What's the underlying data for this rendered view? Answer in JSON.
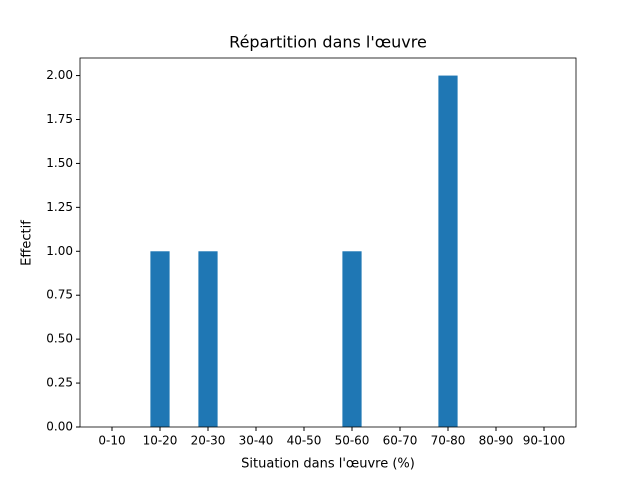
{
  "chart_data": {
    "type": "bar",
    "title": "Répartition dans l'œuvre",
    "x_label": "Situation dans l'œuvre (%)",
    "y_label": "Effectif",
    "categories": [
      "0-10",
      "10-20",
      "20-30",
      "30-40",
      "40-50",
      "50-60",
      "60-70",
      "70-80",
      "80-90",
      "90-100"
    ],
    "values": [
      0,
      1,
      1,
      0,
      0,
      1,
      0,
      2,
      0,
      0
    ],
    "color": "#1f77b4",
    "ylim": [
      0,
      2.1
    ],
    "yticks": [
      {
        "value": 0,
        "label": "0.00"
      },
      {
        "value": 0.25,
        "label": "0.25"
      },
      {
        "value": 0.5,
        "label": "0.50"
      },
      {
        "value": 0.75,
        "label": "0.75"
      },
      {
        "value": 1,
        "label": "1.00"
      },
      {
        "value": 1.25,
        "label": "1.25"
      },
      {
        "value": 1.5,
        "label": "1.50"
      },
      {
        "value": 1.75,
        "label": "1.75"
      },
      {
        "value": 2,
        "label": "2.00"
      }
    ],
    "grid": false
  }
}
